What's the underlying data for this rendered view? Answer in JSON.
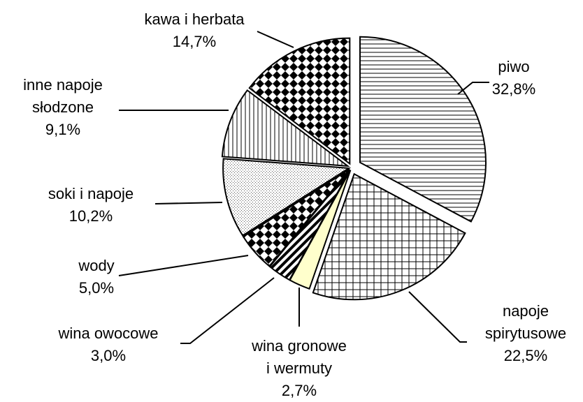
{
  "chart_data": {
    "type": "pie",
    "categories": [
      "piwo",
      "napoje\nspirytusowe",
      "wina gronowe\ni wermuty",
      "wina owocowe",
      "wody",
      "soki i napoje",
      "inne napoje\nsłodzone",
      "kawa i herbata"
    ],
    "values": [
      32.8,
      22.5,
      2.7,
      3.0,
      5.0,
      10.2,
      9.1,
      14.7
    ],
    "value_labels": [
      "32,8%",
      "22,5%",
      "2,7%",
      "3,0%",
      "5,0%",
      "10,2%",
      "9,1%",
      "14,7%"
    ],
    "patterns": [
      "horizontal",
      "grid",
      "solid",
      "diagonal",
      "checker",
      "dots",
      "vertical",
      "checker"
    ],
    "colors": [
      "#000000",
      "#000000",
      "#ffffcc",
      "#000000",
      "#000000",
      "#000000",
      "#000000",
      "#000000"
    ]
  }
}
